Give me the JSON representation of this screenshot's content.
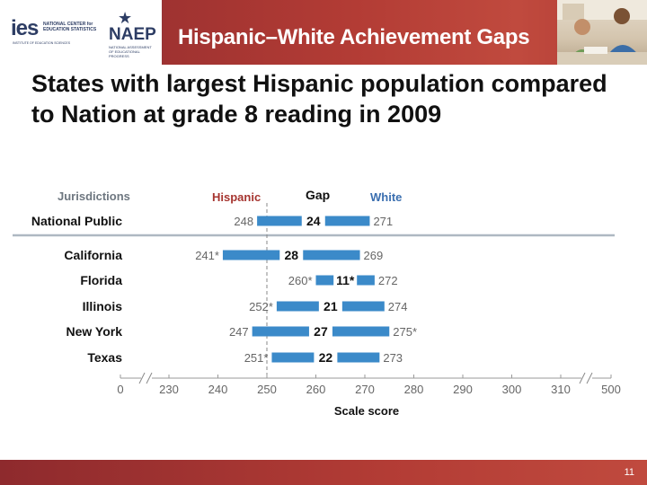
{
  "header": {
    "title": "Hispanic–White Achievement Gaps",
    "ies_logo": {
      "mark": "ies",
      "name": "NATIONAL CENTER for EDUCATION STATISTICS",
      "tagline": "INSTITUTE OF EDUCATION SCIENCES"
    },
    "naep_logo": {
      "mark": "NAEP",
      "subtitle": "NATIONAL ASSESSMENT OF EDUCATIONAL PROGRESS"
    },
    "photo": "students-photo"
  },
  "slide": {
    "title": "States with largest Hispanic population compared to Nation at grade 8 reading in 2009",
    "page_number": "11"
  },
  "colors": {
    "bar": "#3b8ac9",
    "header": "#a63530",
    "separator": "#aeb8c2"
  },
  "chart_data": {
    "type": "bar",
    "subtype": "gap-range",
    "column_headers": {
      "jurisdictions": "Jurisdictions",
      "hispanic": "Hispanic",
      "gap": "Gap",
      "white": "White"
    },
    "rows": [
      {
        "jurisdiction": "National Public",
        "hispanic": 248,
        "hispanic_label": "248",
        "white": 271,
        "white_label": "271",
        "gap": "24"
      },
      {
        "jurisdiction": "California",
        "hispanic": 241,
        "hispanic_label": "241*",
        "white": 269,
        "white_label": "269",
        "gap": "28"
      },
      {
        "jurisdiction": "Florida",
        "hispanic": 260,
        "hispanic_label": "260*",
        "white": 272,
        "white_label": "272",
        "gap": "11*"
      },
      {
        "jurisdiction": "Illinois",
        "hispanic": 252,
        "hispanic_label": "252*",
        "white": 274,
        "white_label": "274",
        "gap": "21"
      },
      {
        "jurisdiction": "New York",
        "hispanic": 247,
        "hispanic_label": "247",
        "white": 275,
        "white_label": "275*",
        "gap": "27"
      },
      {
        "jurisdiction": "Texas",
        "hispanic": 251,
        "hispanic_label": "251*",
        "white": 273,
        "white_label": "273",
        "gap": "22"
      }
    ],
    "xaxis": {
      "label": "Scale score",
      "range": [
        230,
        310
      ],
      "ticks": [
        230,
        240,
        250,
        260,
        270,
        280,
        290,
        300,
        310
      ],
      "tick_labels": [
        "230",
        "240",
        "250",
        "260",
        "270",
        "280",
        "290",
        "300",
        "310"
      ],
      "break_start": "0",
      "break_end": "500",
      "reference_line": 250
    }
  }
}
